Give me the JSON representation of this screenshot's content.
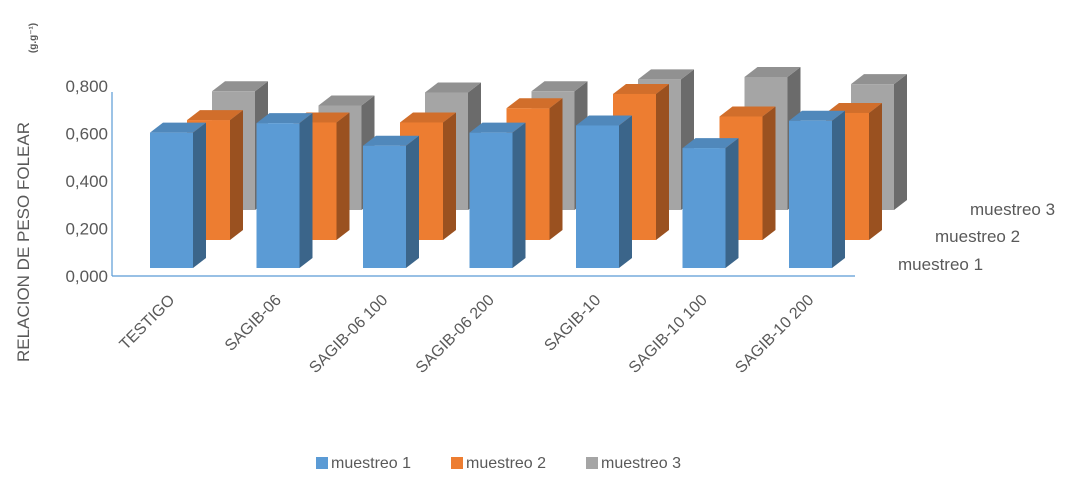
{
  "chart_data": {
    "type": "bar",
    "title": "",
    "ylabel": "RELACION DE PESO FOLEAR",
    "ylabel_unit": "(g.g⁻¹)",
    "xlabel": "",
    "categories": [
      "TESTIGO",
      "SAGIB-06",
      "SAGIB-06 100",
      "SAGIB-06 200",
      "SAGIB-10",
      "SAGIB-10 100",
      "SAGIB-10 200"
    ],
    "series": [
      {
        "name": "muestreo 1",
        "color": "#5B9BD5",
        "values": [
          0.57,
          0.61,
          0.515,
          0.57,
          0.6,
          0.505,
          0.62
        ]
      },
      {
        "name": "muestreo 2",
        "color": "#ED7D31",
        "values": [
          0.505,
          0.495,
          0.495,
          0.555,
          0.615,
          0.52,
          0.535
        ]
      },
      {
        "name": "muestreo 3",
        "color": "#A5A5A5",
        "values": [
          0.5,
          0.44,
          0.495,
          0.5,
          0.55,
          0.56,
          0.53
        ]
      }
    ],
    "ytick_labels": [
      "0,000",
      "0,200",
      "0,400",
      "0,600",
      "0,800"
    ],
    "ylim": [
      0,
      0.8
    ],
    "grid": false,
    "legend_position": "bottom",
    "depth_axis_labels": [
      "muestreo 1",
      "muestreo 2",
      "muestreo 3"
    ]
  }
}
